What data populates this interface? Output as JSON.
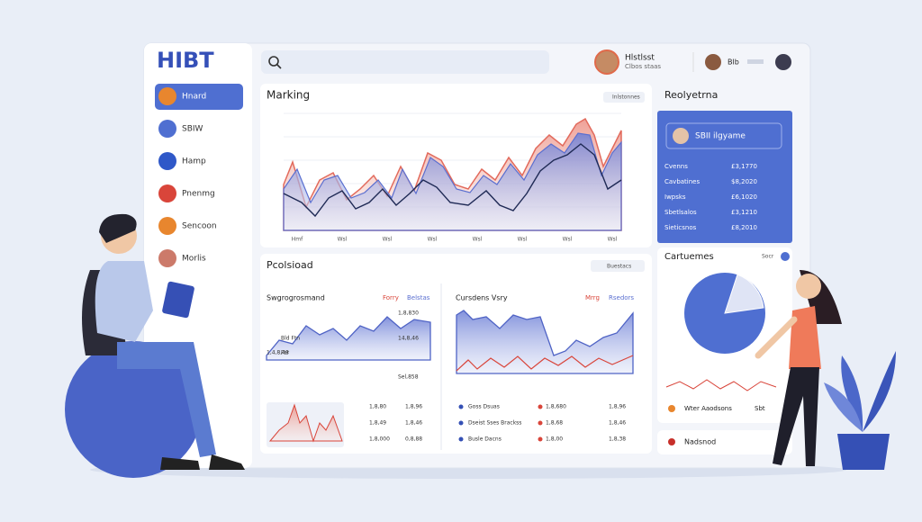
{
  "logo": "HIBT",
  "nav": [
    "Hnard",
    "SBIW",
    "Hamp",
    "Pnenmg",
    "Sencoon",
    "Morlis"
  ],
  "header": {
    "user": "Hlstlsst",
    "user_sub": "Clbos staas",
    "user2": "Blb"
  },
  "marking": {
    "title": "Marking",
    "button": "Inlstonnes",
    "x_labels": [
      "Hmf",
      "Wsl",
      "Wsl",
      "Wsl",
      "Wsl",
      "Wsl",
      "Wsl",
      "Wsl"
    ]
  },
  "realtime": {
    "title": "Reolyetrna",
    "card": "SBII ilgyame",
    "rows": [
      [
        "Cvenns",
        "£3,1770"
      ],
      [
        "Cavbatines",
        "$8,2020"
      ],
      [
        "Iwpsks",
        "£6,1020"
      ],
      [
        "Sbetlsalos",
        "£3,1210"
      ],
      [
        "Sieticsnos",
        "£8,2010"
      ]
    ]
  },
  "processed": {
    "title": "Pcolsioad",
    "button": "Buestacs",
    "left_title": "Swgrogrosmand",
    "left_tag": "Forry",
    "left_tag2": "Belstas",
    "right_title": "Cursdens Vsry",
    "right_tag": "Mrrg",
    "right_tag2": "Rsedors",
    "left_rows": [
      [
        "1,8,830"
      ],
      [
        "14,8,46",
        "Bld Ftn"
      ],
      [
        "1,4,8,48",
        "Fsr"
      ],
      [
        "Sel,858"
      ]
    ],
    "bottom_left": [
      [
        "1,8,80",
        "1,8,96"
      ],
      [
        "1,8,49",
        "1,8,46"
      ],
      [
        "1,8,000",
        "0,8,88"
      ]
    ],
    "bottom_right": [
      [
        "Goss Dsuas",
        "1,8,680",
        "1,8,96"
      ],
      [
        "Dseist Sses Brackss",
        "1,8,68",
        "1,8,46"
      ],
      [
        "Busle Dacns",
        "1,8,00",
        "1,8,38"
      ]
    ]
  },
  "customers": {
    "title": "Cartuemes",
    "tag": "Socr",
    "legend": "Wter Aaodsons",
    "legend_val": "Sbt",
    "footer": "Nadsnod"
  }
}
